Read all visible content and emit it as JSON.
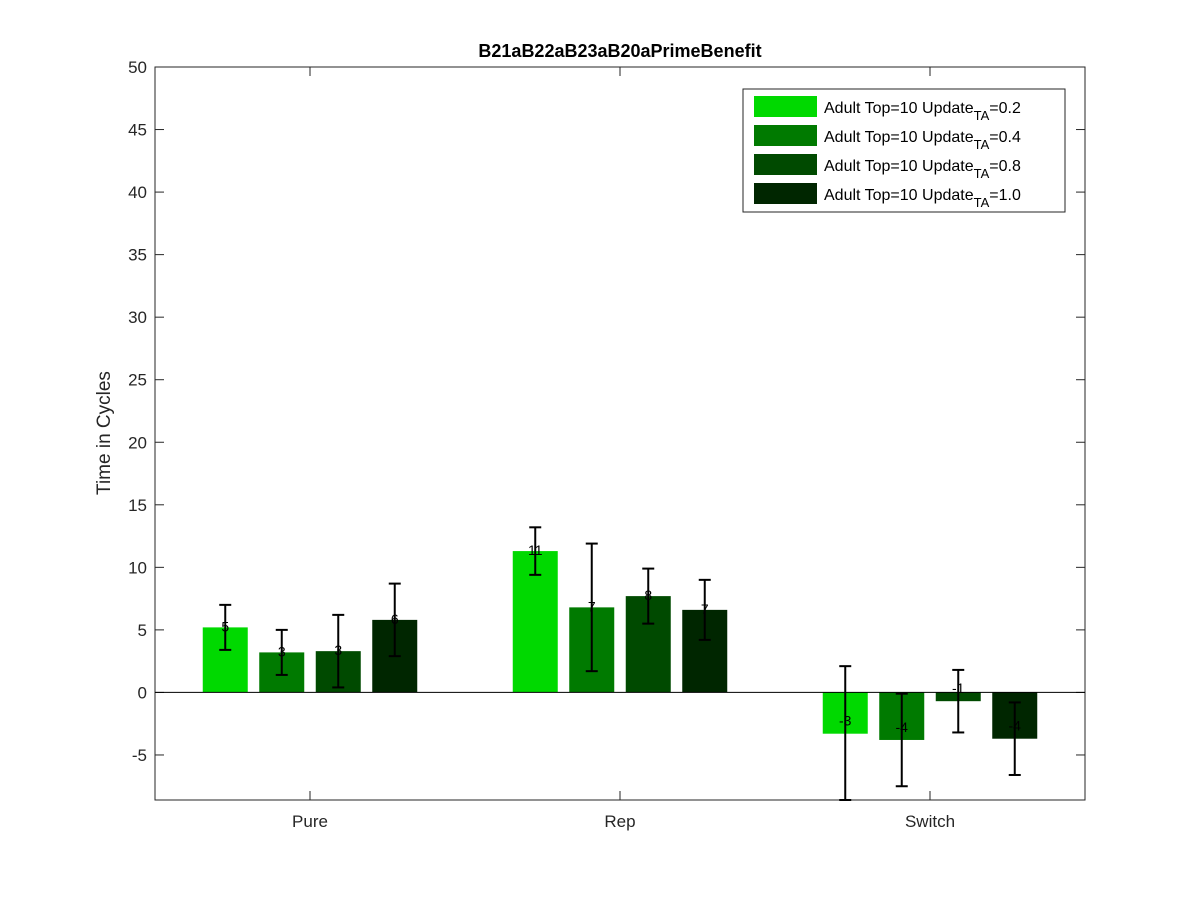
{
  "chart_data": {
    "type": "bar",
    "title": "B21aB22aB23aB20aPrimeBenefit",
    "xlabel": "",
    "ylabel": "Time in Cycles",
    "categories": [
      "Pure",
      "Rep",
      "Switch"
    ],
    "ylim": [
      -8.6,
      50
    ],
    "yticks": [
      -5,
      0,
      5,
      10,
      15,
      20,
      25,
      30,
      35,
      40,
      45,
      50
    ],
    "grid": false,
    "legend_position": "top-right",
    "series": [
      {
        "name": "Adult Top=10 Update",
        "name_subscript": "TA",
        "name_suffix": "=0.2",
        "color": "#00d900",
        "values": [
          5.2,
          11.3,
          -3.3
        ],
        "errors": [
          1.8,
          1.9,
          5.4
        ],
        "labels": [
          "5",
          "11",
          "-3"
        ]
      },
      {
        "name": "Adult Top=10 Update",
        "name_subscript": "TA",
        "name_suffix": "=0.4",
        "color": "#007a00",
        "values": [
          3.2,
          6.8,
          -3.8
        ],
        "errors": [
          1.8,
          5.1,
          3.7
        ],
        "labels": [
          "3",
          "7",
          "-4"
        ]
      },
      {
        "name": "Adult Top=10 Update",
        "name_subscript": "TA",
        "name_suffix": "=0.8",
        "color": "#004a00",
        "values": [
          3.3,
          7.7,
          -0.7
        ],
        "errors": [
          2.9,
          2.2,
          2.5
        ],
        "labels": [
          "3",
          "8",
          "-1"
        ]
      },
      {
        "name": "Adult Top=10 Update",
        "name_subscript": "TA",
        "name_suffix": "=1.0",
        "color": "#002600",
        "values": [
          5.8,
          6.6,
          -3.7
        ],
        "errors": [
          2.9,
          2.4,
          2.9
        ],
        "labels": [
          "6",
          "7",
          "-4"
        ]
      }
    ]
  }
}
